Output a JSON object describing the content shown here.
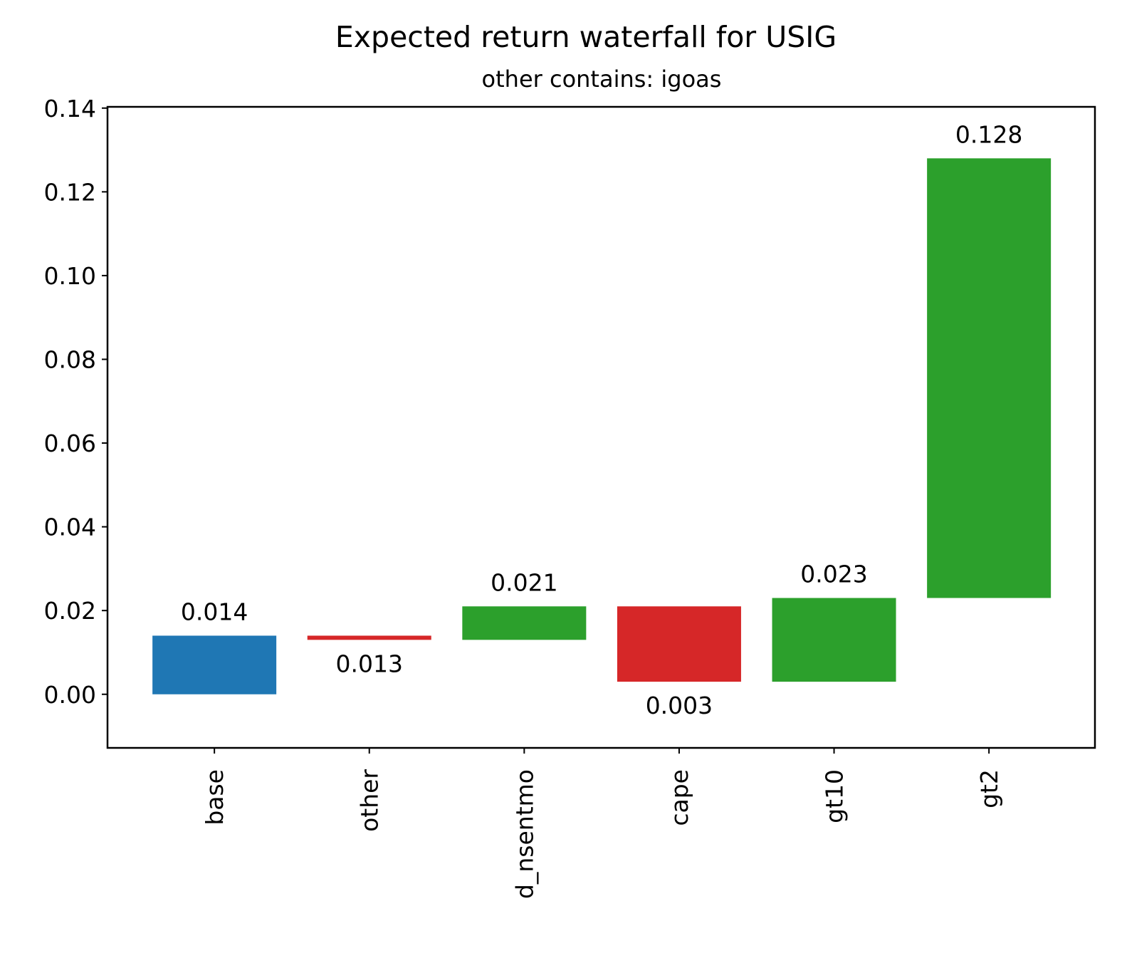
{
  "chart_data": {
    "type": "waterfall",
    "title": "Expected return waterfall for USIG",
    "subtitle": "other contains: igoas",
    "categories": [
      "base",
      "other",
      "d_nsentmo",
      "cape",
      "gt10",
      "gt2"
    ],
    "values": [
      0.014,
      0.013,
      0.021,
      0.003,
      0.023,
      0.128
    ],
    "colors": [
      "#1f77b4",
      "#d62728",
      "#2ca02c",
      "#d62728",
      "#2ca02c",
      "#2ca02c"
    ],
    "ylim": [
      -0.0128,
      0.1403
    ],
    "yticks": [
      {
        "value": 0,
        "label": "0.00"
      },
      0.02,
      0.04,
      0.06,
      0.08,
      {
        "value": 0.1,
        "label": "0.10"
      },
      0.12,
      0.14
    ]
  }
}
